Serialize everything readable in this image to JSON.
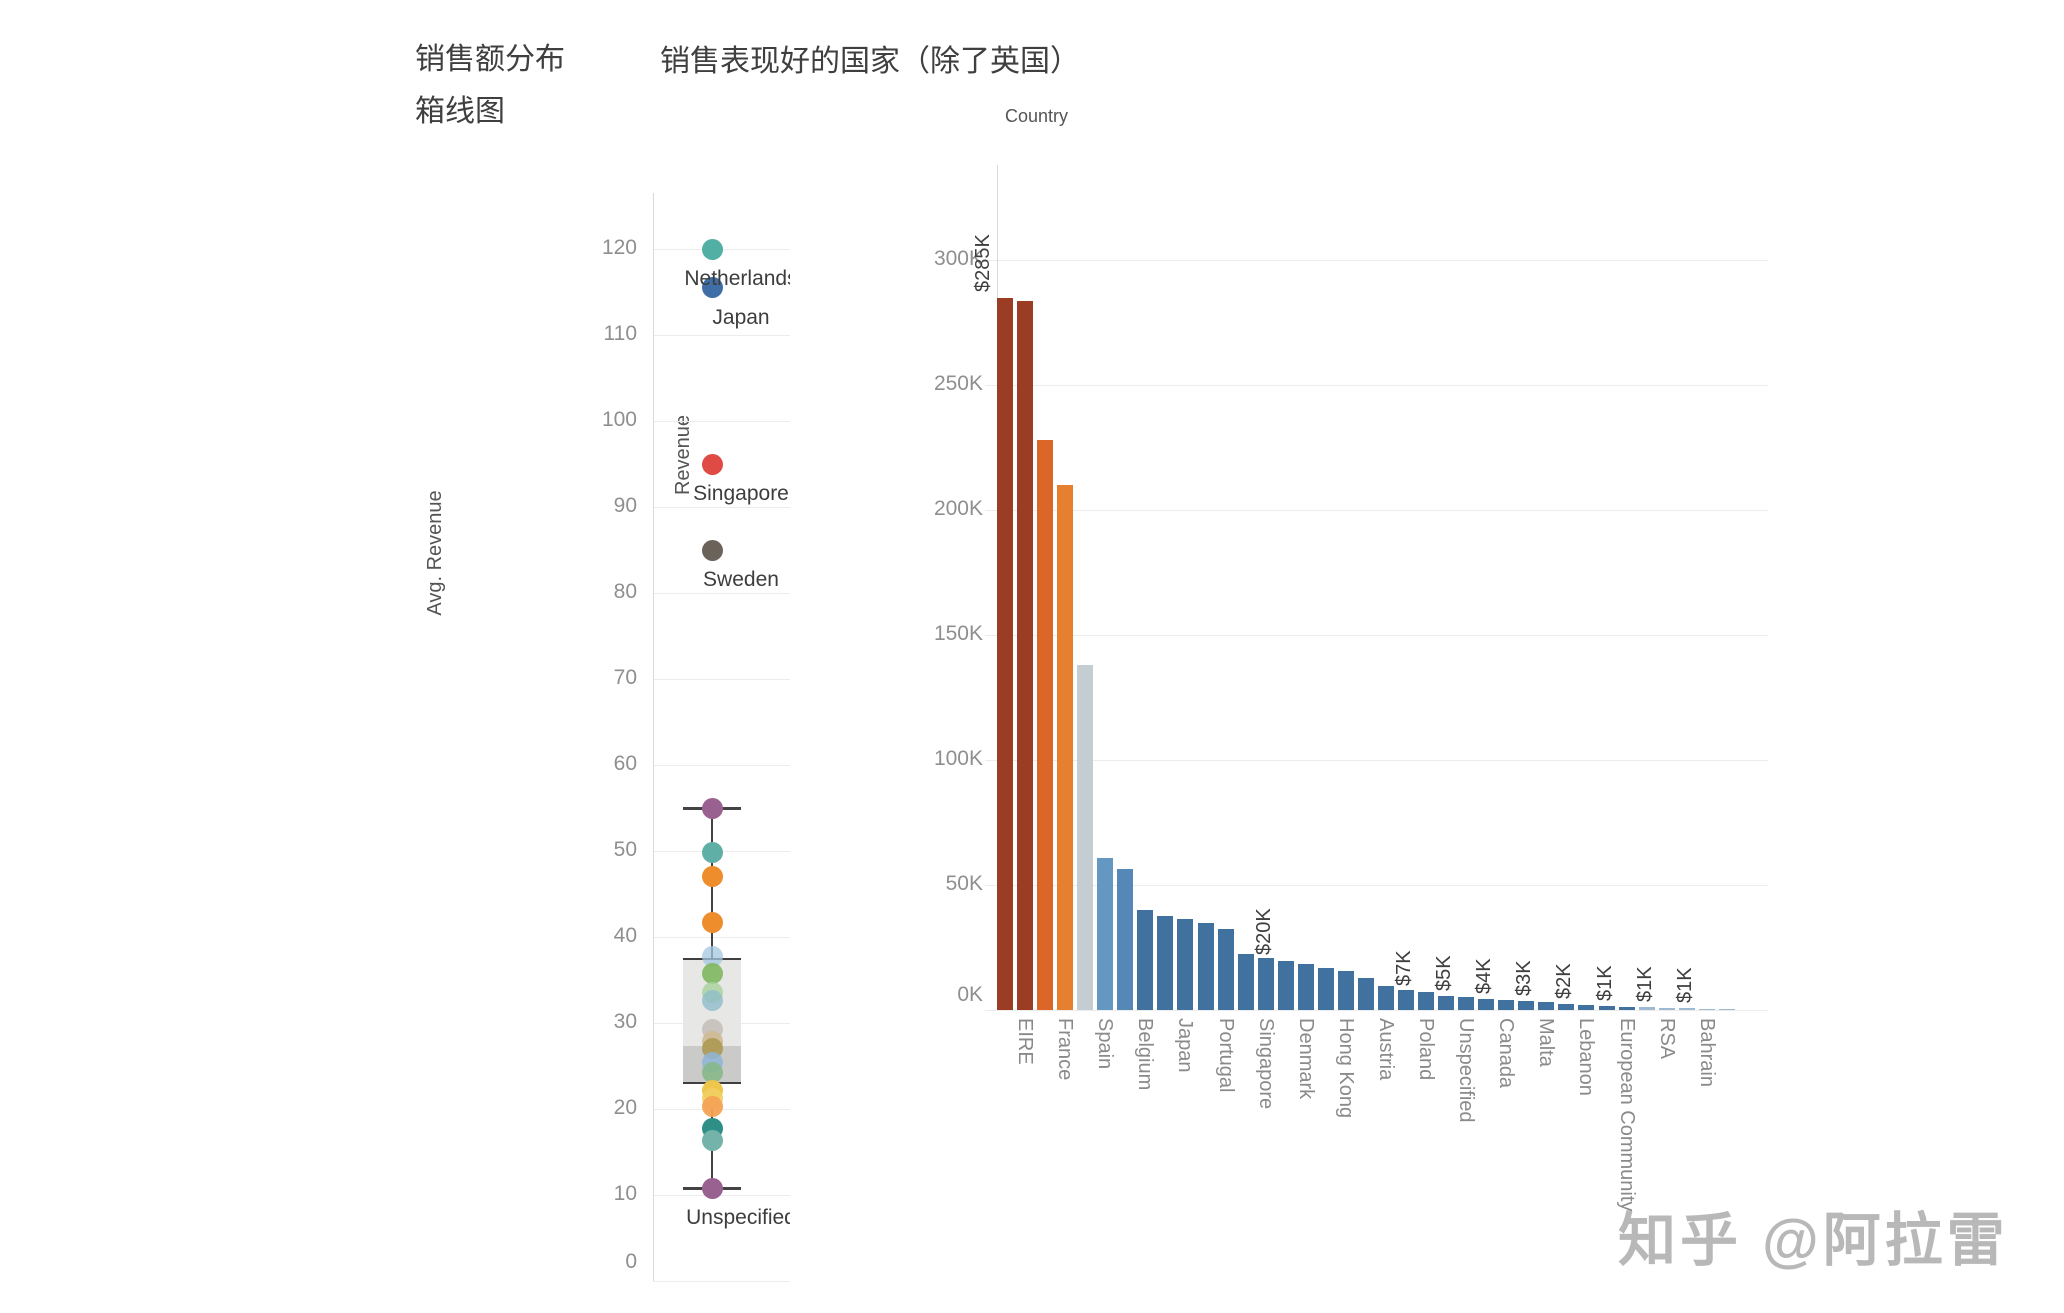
{
  "titles": {
    "left_line1": "销售额分布",
    "left_line2": "箱线图",
    "right": "销售表现好的国家（除了英国）",
    "column_header": "Country"
  },
  "watermark": {
    "text": "知乎 @阿拉雷"
  },
  "palette": {
    "dark_red": "#9B3D25",
    "orange_deep": "#DC6628",
    "orange": "#E6802F",
    "gray_bar": "#C3CDD2",
    "blue_light1": "#6497C2",
    "blue_light2": "#5588B6",
    "blue": "#40719F",
    "blue_faint": "#9DB9D3",
    "gridline": "#ececec",
    "box_upper_fill": "#e7e7e6",
    "box_lower_fill": "#cacac9"
  },
  "chart_data": [
    {
      "type": "box",
      "title": "销售额分布 箱线图",
      "ylabel": "Avg. Revenue",
      "ylim": [
        0,
        126
      ],
      "y_ticks": [
        0,
        10,
        20,
        30,
        40,
        50,
        60,
        70,
        80,
        90,
        100,
        110,
        120
      ],
      "grid": true,
      "box": {
        "whisker_low": 10.8,
        "q1": 23,
        "median": 27.3,
        "q3": 37.4,
        "whisker_high": 55
      },
      "points": [
        {
          "v": 120,
          "c": "#52AFA3",
          "o": 1,
          "label": "Netherlands"
        },
        {
          "v": 115.5,
          "c": "#3E6EA5",
          "o": 1,
          "label": "Japan"
        },
        {
          "v": 95,
          "c": "#DF4A44",
          "o": 1,
          "label": "Singapore"
        },
        {
          "v": 85,
          "c": "#6B6259",
          "o": 1,
          "label": "Sweden"
        },
        {
          "v": 55,
          "c": "#99618F",
          "o": 1
        },
        {
          "v": 49.8,
          "c": "#5FAFA7",
          "o": 1
        },
        {
          "v": 47,
          "c": "#EE8D2C",
          "o": 1
        },
        {
          "v": 41.7,
          "c": "#EE8D2C",
          "o": 1
        },
        {
          "v": 37.7,
          "c": "#A3C6E0",
          "o": 0.75
        },
        {
          "v": 35.8,
          "c": "#7EB75E",
          "o": 0.9
        },
        {
          "v": 33.5,
          "c": "#A9D29C",
          "o": 0.8
        },
        {
          "v": 32.6,
          "c": "#90BDCB",
          "o": 0.8
        },
        {
          "v": 29.2,
          "c": "#C6C0B9",
          "o": 0.9
        },
        {
          "v": 27.9,
          "c": "#CEBA92",
          "o": 0.9
        },
        {
          "v": 27.0,
          "c": "#AC964F",
          "o": 0.85
        },
        {
          "v": 25.4,
          "c": "#8FB5D8",
          "o": 0.85
        },
        {
          "v": 24.3,
          "c": "#85B785",
          "o": 0.85
        },
        {
          "v": 22.1,
          "c": "#EEC64B",
          "o": 1
        },
        {
          "v": 21.2,
          "c": "#F2CE63",
          "o": 0.9
        },
        {
          "v": 20.3,
          "c": "#F4A354",
          "o": 0.95
        },
        {
          "v": 17.7,
          "c": "#2E8F88",
          "o": 1
        },
        {
          "v": 16.3,
          "c": "#73B3AA",
          "o": 1
        },
        {
          "v": 10.8,
          "c": "#99618F",
          "o": 1,
          "label": "Unspecified"
        }
      ]
    },
    {
      "type": "bar",
      "title": "销售表现好的国家（除了英国）",
      "xlabel": "Country",
      "ylabel": "Revenue",
      "ylim_k": [
        0,
        340
      ],
      "y_ticks": [
        "0K",
        "50K",
        "100K",
        "150K",
        "200K",
        "250K",
        "300K"
      ],
      "grid": true,
      "bars": [
        {
          "country": "",
          "value_k": 285,
          "color": "dark_red",
          "value_label": "$285K"
        },
        {
          "country": "EIRE",
          "value_k": 283.5,
          "color": "dark_red",
          "value_label": ""
        },
        {
          "country": "",
          "value_k": 228,
          "color": "orange_deep",
          "value_label": ""
        },
        {
          "country": "France",
          "value_k": 210,
          "color": "orange",
          "value_label": ""
        },
        {
          "country": "",
          "value_k": 138,
          "color": "gray_bar",
          "value_label": ""
        },
        {
          "country": "Spain",
          "value_k": 61,
          "color": "blue_light1",
          "value_label": ""
        },
        {
          "country": "",
          "value_k": 56.5,
          "color": "blue_light2",
          "value_label": ""
        },
        {
          "country": "Belgium",
          "value_k": 40,
          "color": "blue",
          "value_label": ""
        },
        {
          "country": "",
          "value_k": 37.5,
          "color": "blue",
          "value_label": ""
        },
        {
          "country": "Japan",
          "value_k": 36.5,
          "color": "blue",
          "value_label": ""
        },
        {
          "country": "",
          "value_k": 35,
          "color": "blue",
          "value_label": ""
        },
        {
          "country": "Portugal",
          "value_k": 32.5,
          "color": "blue",
          "value_label": ""
        },
        {
          "country": "",
          "value_k": 22.5,
          "color": "blue",
          "value_label": ""
        },
        {
          "country": "Singapore",
          "value_k": 20.8,
          "color": "blue",
          "value_label": ""
        },
        {
          "country": "",
          "value_k": 19.8,
          "color": "blue",
          "value_label": "$20K"
        },
        {
          "country": "Denmark",
          "value_k": 18.5,
          "color": "blue",
          "value_label": ""
        },
        {
          "country": "",
          "value_k": 17,
          "color": "blue",
          "value_label": ""
        },
        {
          "country": "Hong Kong",
          "value_k": 15.5,
          "color": "blue",
          "value_label": ""
        },
        {
          "country": "",
          "value_k": 13,
          "color": "blue",
          "value_label": ""
        },
        {
          "country": "Austria",
          "value_k": 9.6,
          "color": "blue",
          "value_label": ""
        },
        {
          "country": "",
          "value_k": 8.2,
          "color": "blue",
          "value_label": ""
        },
        {
          "country": "Poland",
          "value_k": 7.1,
          "color": "blue",
          "value_label": "$7K"
        },
        {
          "country": "",
          "value_k": 5.8,
          "color": "blue",
          "value_label": ""
        },
        {
          "country": "Unspecified",
          "value_k": 5.1,
          "color": "blue",
          "value_label": "$5K"
        },
        {
          "country": "",
          "value_k": 4.6,
          "color": "blue",
          "value_label": ""
        },
        {
          "country": "Canada",
          "value_k": 4.1,
          "color": "blue",
          "value_label": "$4K"
        },
        {
          "country": "",
          "value_k": 3.6,
          "color": "blue",
          "value_label": ""
        },
        {
          "country": "Malta",
          "value_k": 3.1,
          "color": "blue",
          "value_label": "$3K"
        },
        {
          "country": "",
          "value_k": 2.4,
          "color": "blue",
          "value_label": ""
        },
        {
          "country": "Lebanon",
          "value_k": 2.0,
          "color": "blue",
          "value_label": "$2K"
        },
        {
          "country": "",
          "value_k": 1.6,
          "color": "blue",
          "value_label": ""
        },
        {
          "country": "European Community",
          "value_k": 1.3,
          "color": "blue",
          "value_label": "$1K"
        },
        {
          "country": "",
          "value_k": 1.1,
          "color": "blue_faint",
          "value_label": ""
        },
        {
          "country": "RSA",
          "value_k": 1.0,
          "color": "blue_faint",
          "value_label": "$1K"
        },
        {
          "country": "",
          "value_k": 0.8,
          "color": "blue_faint",
          "value_label": ""
        },
        {
          "country": "Bahrain",
          "value_k": 0.6,
          "color": "blue_faint",
          "value_label": "$1K"
        },
        {
          "country": "",
          "value_k": 0.2,
          "color": "blue_faint",
          "value_label": ""
        }
      ]
    }
  ]
}
